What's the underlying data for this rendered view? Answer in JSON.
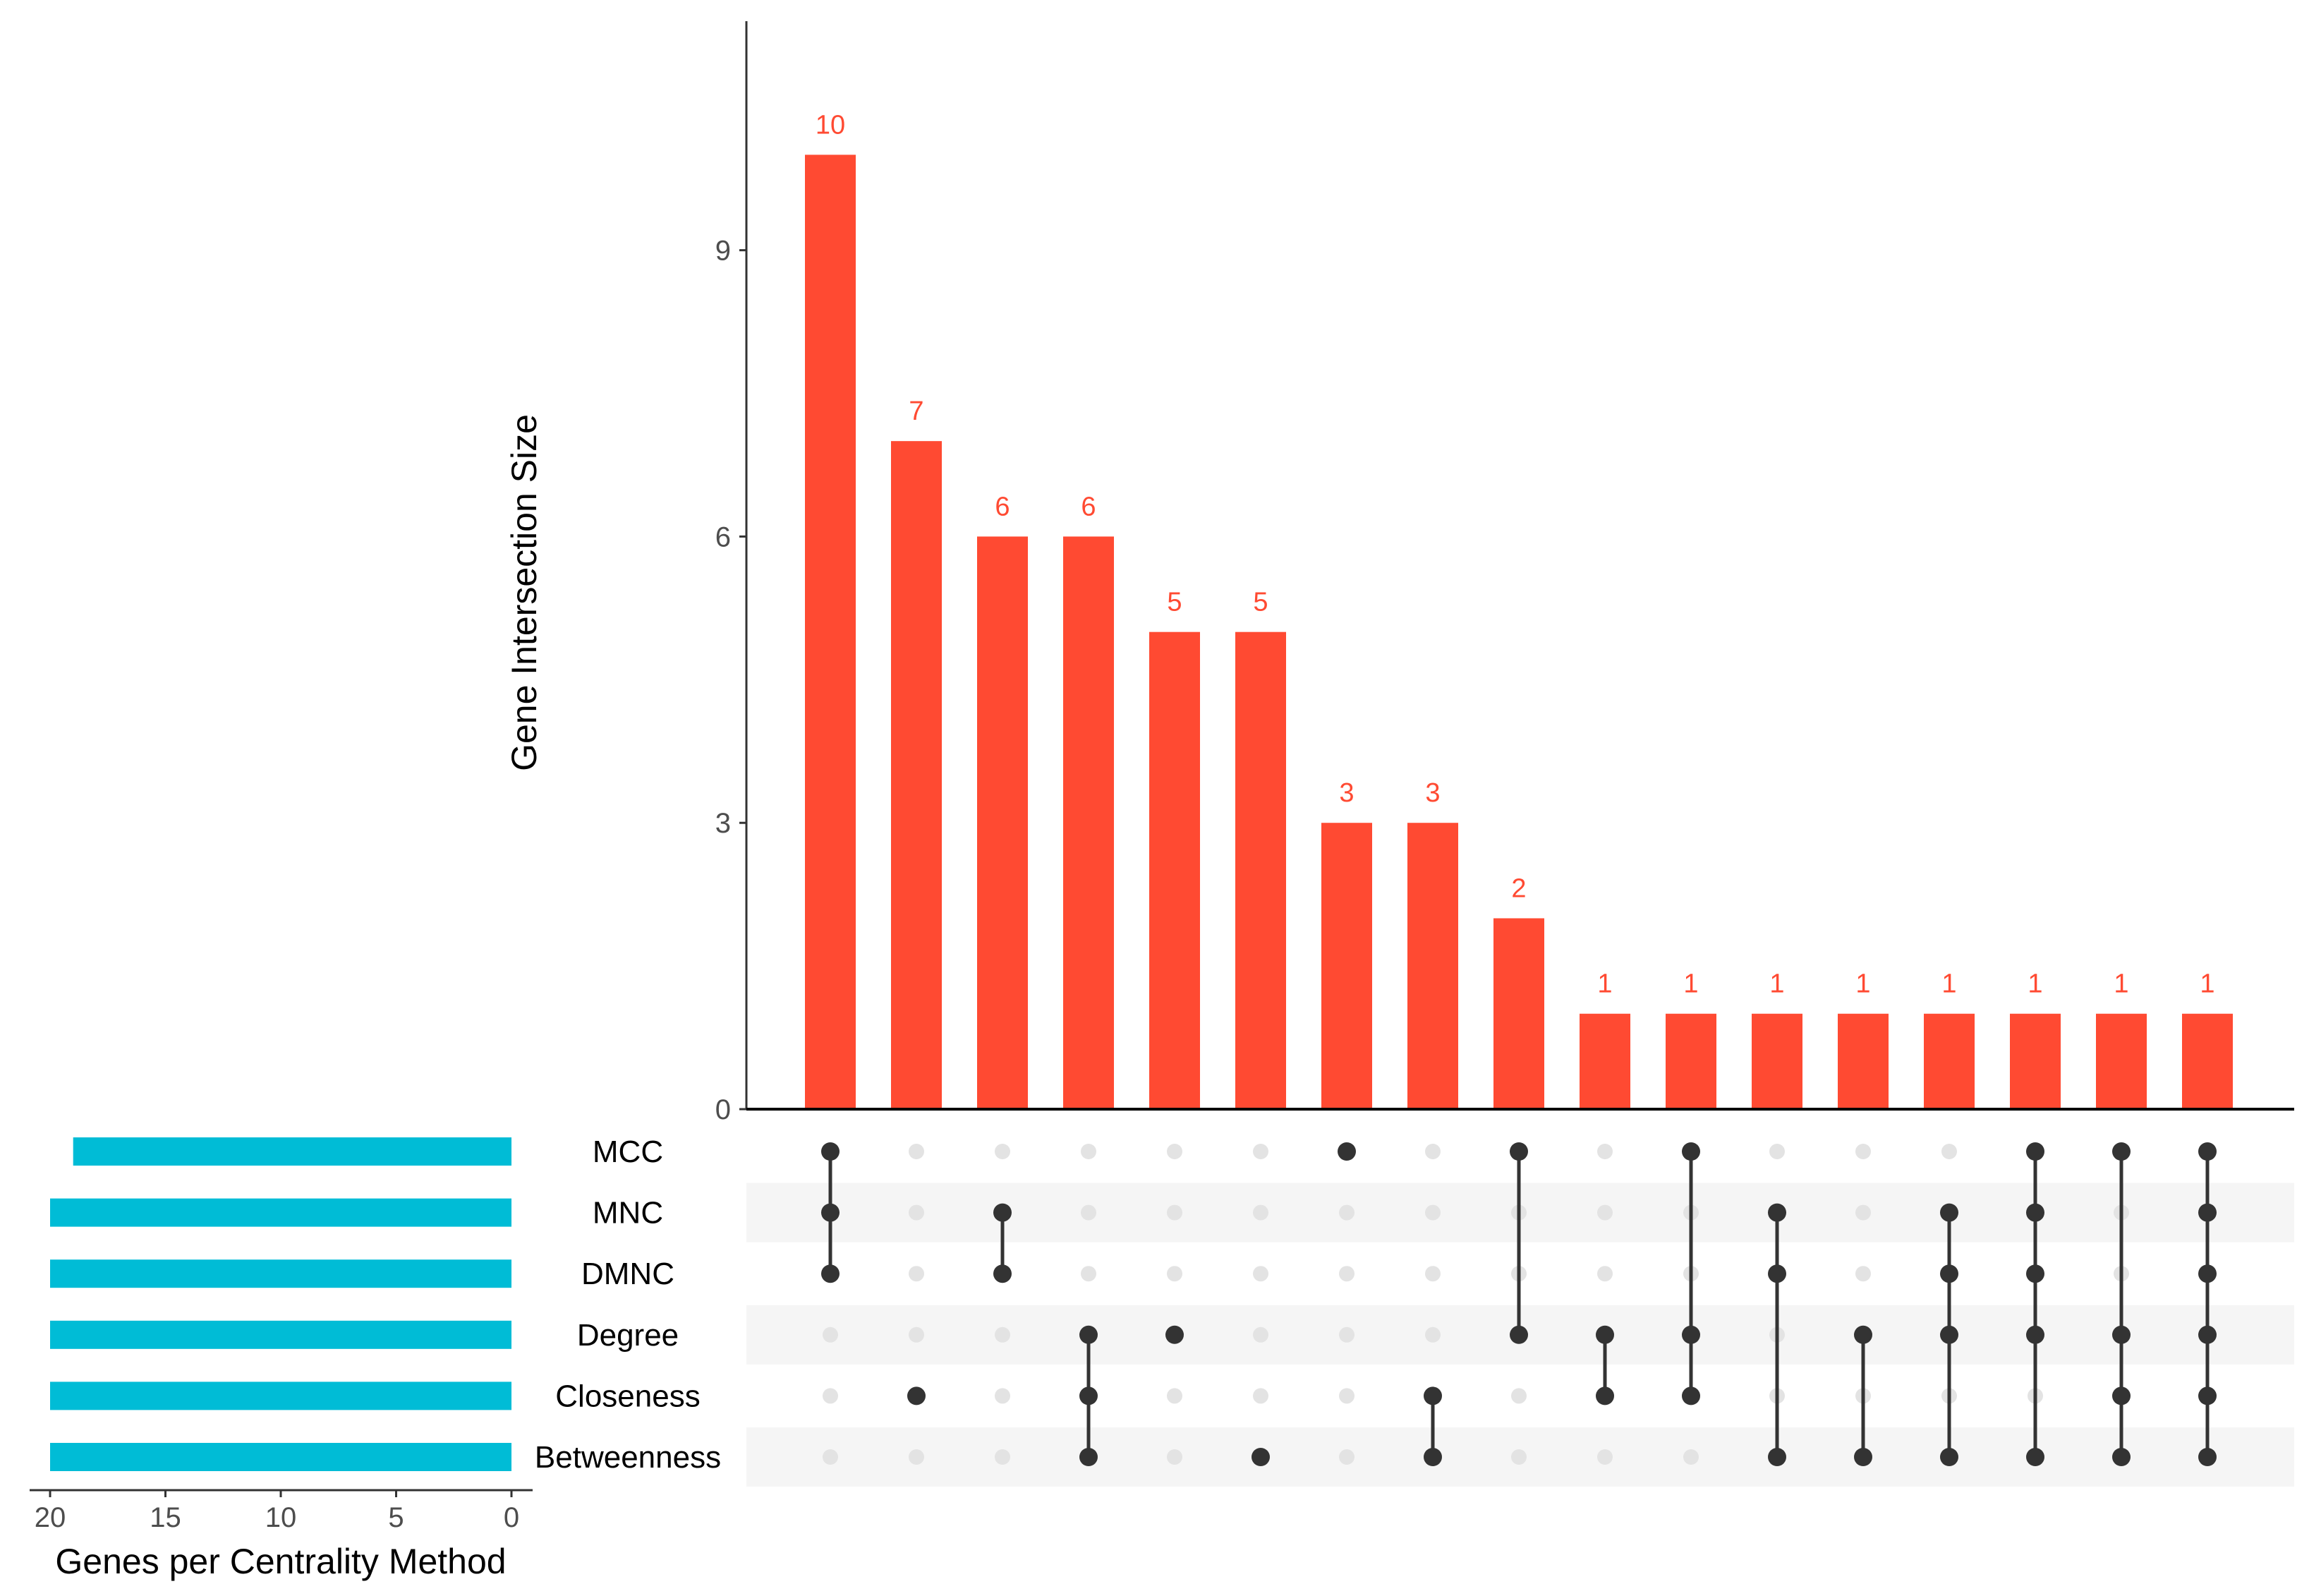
{
  "chart_data": {
    "type": "upset",
    "colors": {
      "intersection_bar": "#ff4a32",
      "intersection_label": "#ff4a32",
      "set_bar": "#00bcd6",
      "dot_active": "#333333",
      "dot_inactive": "#e3e3e3",
      "stripe": "#f5f5f5",
      "axis": "#333333"
    },
    "intersection_axis": {
      "ylabel": "Gene Intersection Size",
      "ylim": [
        0,
        11.4
      ],
      "ticks": [
        0,
        3,
        6,
        9
      ]
    },
    "set_size_axis": {
      "xlabel": "Genes per Centrality Method",
      "xlim": [
        21,
        0
      ],
      "ticks": [
        20,
        15,
        10,
        5,
        0
      ]
    },
    "sets": [
      {
        "name": "MCC",
        "size": 19
      },
      {
        "name": "MNC",
        "size": 20
      },
      {
        "name": "DMNC",
        "size": 20
      },
      {
        "name": "Degree",
        "size": 20
      },
      {
        "name": "Closeness",
        "size": 20
      },
      {
        "name": "Betweenness",
        "size": 20
      }
    ],
    "intersections": [
      {
        "size": 10,
        "label": "10",
        "members": [
          "MCC",
          "MNC",
          "DMNC"
        ]
      },
      {
        "size": 7,
        "label": "7",
        "members": [
          "Closeness"
        ]
      },
      {
        "size": 6,
        "label": "6",
        "members": [
          "MNC",
          "DMNC"
        ]
      },
      {
        "size": 6,
        "label": "6",
        "members": [
          "Degree",
          "Closeness",
          "Betweenness"
        ]
      },
      {
        "size": 5,
        "label": "5",
        "members": [
          "Degree"
        ]
      },
      {
        "size": 5,
        "label": "5",
        "members": [
          "Betweenness"
        ]
      },
      {
        "size": 3,
        "label": "3",
        "members": [
          "MCC"
        ]
      },
      {
        "size": 3,
        "label": "3",
        "members": [
          "Closeness",
          "Betweenness"
        ]
      },
      {
        "size": 2,
        "label": "2",
        "members": [
          "MCC",
          "Degree"
        ]
      },
      {
        "size": 1,
        "label": "1",
        "members": [
          "Degree",
          "Closeness"
        ]
      },
      {
        "size": 1,
        "label": "1",
        "members": [
          "MCC",
          "Degree",
          "Closeness"
        ]
      },
      {
        "size": 1,
        "label": "1",
        "members": [
          "MNC",
          "DMNC",
          "Betweenness"
        ]
      },
      {
        "size": 1,
        "label": "1",
        "members": [
          "Degree",
          "Betweenness"
        ]
      },
      {
        "size": 1,
        "label": "1",
        "members": [
          "MNC",
          "DMNC",
          "Degree",
          "Betweenness"
        ]
      },
      {
        "size": 1,
        "label": "1",
        "members": [
          "MCC",
          "MNC",
          "DMNC",
          "Degree",
          "Betweenness"
        ]
      },
      {
        "size": 1,
        "label": "1",
        "members": [
          "MCC",
          "Degree",
          "Closeness",
          "Betweenness"
        ]
      },
      {
        "size": 1,
        "label": "1",
        "members": [
          "MCC",
          "MNC",
          "DMNC",
          "Degree",
          "Closeness",
          "Betweenness"
        ]
      }
    ]
  }
}
